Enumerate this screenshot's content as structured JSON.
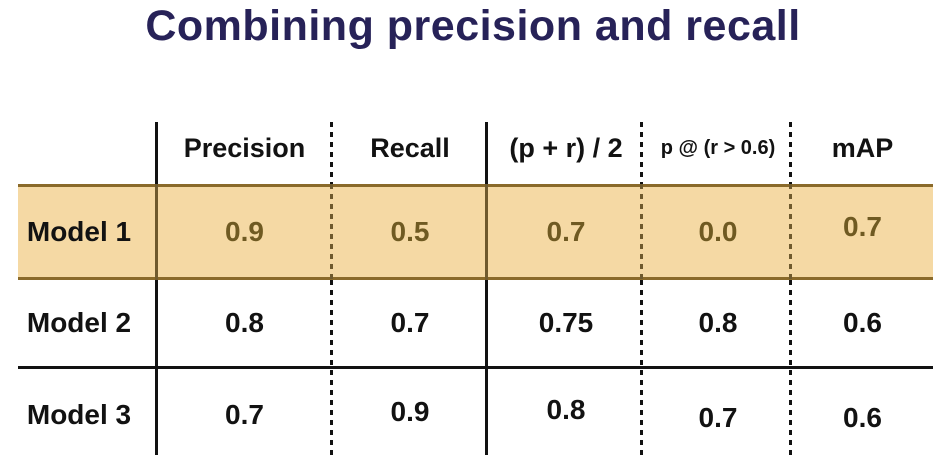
{
  "title": "Combining precision and recall",
  "table": {
    "columns": [
      "Precision",
      "Recall",
      "(p + r) / 2",
      "p @ (r > 0.6)",
      "mAP"
    ],
    "rows": [
      {
        "label": "Model 1",
        "values": [
          "0.9",
          "0.5",
          "0.7",
          "0.0",
          "0.7"
        ],
        "highlighted": true
      },
      {
        "label": "Model 2",
        "values": [
          "0.8",
          "0.7",
          "0.75",
          "0.8",
          "0.6"
        ],
        "highlighted": false
      },
      {
        "label": "Model 3",
        "values": [
          "0.7",
          "0.9",
          "0.8",
          "0.7",
          "0.6"
        ],
        "highlighted": false
      }
    ]
  },
  "colors": {
    "title_text": "#272258",
    "body_text": "#121212",
    "table_line": "#121212",
    "highlight_background": "#f5d9a4",
    "highlight_border": "#8a6a2a",
    "highlight_value_text": "#6f5a22",
    "highlight_line": "#6f5a2e"
  }
}
